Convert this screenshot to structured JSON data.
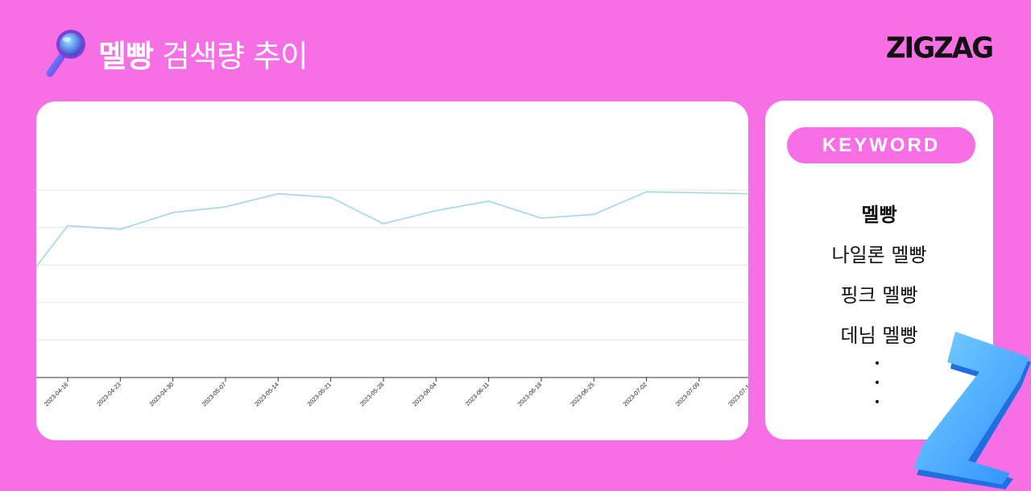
{
  "header": {
    "title_keyword": "멜빵",
    "title_rest": "검색량 추이",
    "logo": "ZIGZAG",
    "icon": "magnifier-icon"
  },
  "keyword_panel": {
    "pill": "KEYWORD",
    "items": [
      "멜빵",
      "나일론 멜빵",
      "핑크 멜빵",
      "데님 멜빵"
    ],
    "more": "..."
  },
  "colors": {
    "background": "#f76fe4",
    "line": "#9fd6ea",
    "grid": "#e6e6e6",
    "pill": "#f76fe4"
  },
  "chart_data": {
    "type": "line",
    "title": "",
    "xlabel": "",
    "ylabel": "",
    "grid": true,
    "ylim": [
      0,
      100
    ],
    "x": [
      "2023-04-09",
      "2023-04-16",
      "2023-04-23",
      "2023-04-30",
      "2023-05-07",
      "2023-05-14",
      "2023-05-21",
      "2023-05-28",
      "2023-06-04",
      "2023-06-11",
      "2023-06-18",
      "2023-06-25",
      "2023-07-02",
      "2023-07-09",
      "2023-07-16"
    ],
    "x_tick_labels": [
      "2023-04-16",
      "2023-04-23",
      "2023-04-30",
      "2023-05-07",
      "2023-05-14",
      "2023-05-21",
      "2023-05-28",
      "2023-06-04",
      "2023-06-11",
      "2023-06-18",
      "2023-06-25",
      "2023-07-02",
      "2023-07-09",
      "2023-07-16"
    ],
    "series": [
      {
        "values": [
          59,
          81,
          79,
          88,
          91,
          98,
          96,
          82,
          89,
          94,
          85,
          87,
          99,
          98.5,
          98
        ]
      }
    ]
  }
}
